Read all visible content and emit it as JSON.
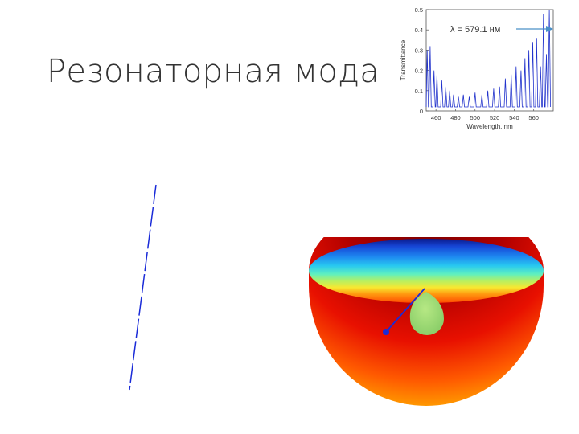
{
  "slide": {
    "title": "Резонаторная мода"
  },
  "annotation": {
    "text": "λ = 579.1 нм"
  },
  "chart_data": {
    "type": "line",
    "title": "",
    "xlabel": "Wavelength, nm",
    "ylabel": "Transmittance",
    "xlim": [
      450,
      580
    ],
    "ylim": [
      0,
      0.5
    ],
    "xticks": [
      460,
      480,
      500,
      520,
      540,
      560
    ],
    "yticks": [
      0,
      0.1,
      0.2,
      0.3,
      0.4,
      0.5
    ],
    "line_color": "#2233cc",
    "peaks": [
      {
        "x": 451,
        "y": 0.3
      },
      {
        "x": 454,
        "y": 0.32
      },
      {
        "x": 458,
        "y": 0.2
      },
      {
        "x": 461,
        "y": 0.18
      },
      {
        "x": 466,
        "y": 0.15
      },
      {
        "x": 470,
        "y": 0.12
      },
      {
        "x": 474,
        "y": 0.1
      },
      {
        "x": 478,
        "y": 0.08
      },
      {
        "x": 483,
        "y": 0.07
      },
      {
        "x": 488,
        "y": 0.08
      },
      {
        "x": 494,
        "y": 0.07
      },
      {
        "x": 500,
        "y": 0.09
      },
      {
        "x": 507,
        "y": 0.08
      },
      {
        "x": 513,
        "y": 0.1
      },
      {
        "x": 519,
        "y": 0.11
      },
      {
        "x": 525,
        "y": 0.12
      },
      {
        "x": 531,
        "y": 0.16
      },
      {
        "x": 537,
        "y": 0.18
      },
      {
        "x": 542,
        "y": 0.22
      },
      {
        "x": 547,
        "y": 0.2
      },
      {
        "x": 551,
        "y": 0.26
      },
      {
        "x": 555,
        "y": 0.3
      },
      {
        "x": 559,
        "y": 0.34
      },
      {
        "x": 563,
        "y": 0.36
      },
      {
        "x": 567,
        "y": 0.22
      },
      {
        "x": 570,
        "y": 0.48
      },
      {
        "x": 573,
        "y": 0.28
      },
      {
        "x": 576,
        "y": 0.5
      }
    ],
    "baseline": 0.02,
    "arrow_color": "#4a90c8"
  },
  "colors": {
    "jet_top": "#0a1a8c",
    "jet_bottom": "#7a0000",
    "probe_sphere": "#a6e07a",
    "blue_line": "#1a2bd8"
  }
}
